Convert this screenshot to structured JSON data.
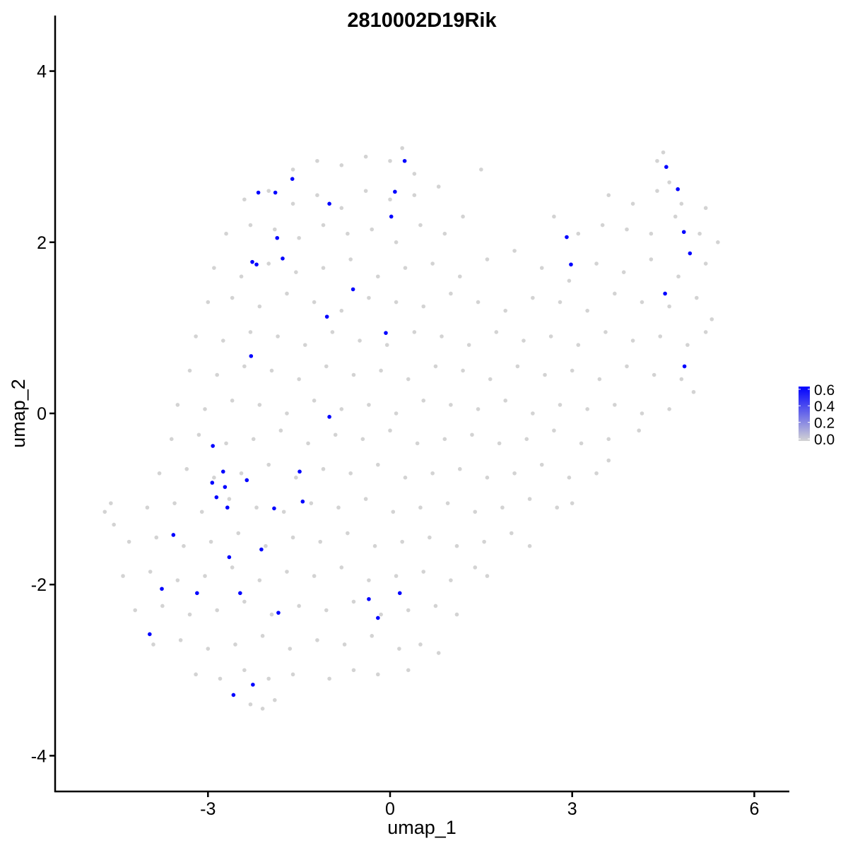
{
  "chart_data": {
    "type": "scatter",
    "title": "2810002D19Rik",
    "xlabel": "umap_1",
    "ylabel": "umap_2",
    "xlim": [
      -5.0,
      6.5
    ],
    "ylim": [
      -4.3,
      4.4
    ],
    "x_ticks": [
      -3,
      0,
      3,
      6
    ],
    "x_tick_labels": [
      "-3",
      "0",
      "3",
      "6"
    ],
    "y_ticks": [
      -4,
      -2,
      0,
      2,
      4
    ],
    "y_tick_labels": [
      "-4",
      "-2",
      "0",
      "2",
      "4"
    ],
    "grid": false,
    "legend": {
      "placement": "right",
      "type": "colorbar",
      "low_color": "#d3d3d3",
      "high_color": "#0000ff",
      "range": [
        0.0,
        0.65
      ],
      "ticks": [
        0.0,
        0.2,
        0.4,
        0.6
      ],
      "tick_labels": [
        "0.0",
        "0.2",
        "0.4",
        "0.6"
      ]
    },
    "colors": {
      "unexpressed": "#d3d3d3",
      "expressed": "#0000ff"
    },
    "expressed_points": [
      [
        0.24,
        2.95
      ],
      [
        -1.61,
        2.74
      ],
      [
        -2.17,
        2.58
      ],
      [
        -1.89,
        2.58
      ],
      [
        0.08,
        2.59
      ],
      [
        -1.0,
        2.45
      ],
      [
        0.02,
        2.3
      ],
      [
        -1.86,
        2.05
      ],
      [
        -2.27,
        1.77
      ],
      [
        -2.2,
        1.74
      ],
      [
        -1.77,
        1.81
      ],
      [
        -0.61,
        1.45
      ],
      [
        -1.04,
        1.13
      ],
      [
        -0.07,
        0.94
      ],
      [
        -2.29,
        0.67
      ],
      [
        -1.0,
        -0.04
      ],
      [
        -2.92,
        -0.38
      ],
      [
        -2.75,
        -0.68
      ],
      [
        -1.49,
        -0.68
      ],
      [
        -2.36,
        -0.78
      ],
      [
        -2.93,
        -0.81
      ],
      [
        -2.72,
        -0.86
      ],
      [
        -2.86,
        -0.98
      ],
      [
        -1.44,
        -1.03
      ],
      [
        -2.68,
        -1.1
      ],
      [
        -1.91,
        -1.11
      ],
      [
        -3.57,
        -1.42
      ],
      [
        -2.12,
        -1.59
      ],
      [
        -2.65,
        -1.68
      ],
      [
        -3.76,
        -2.05
      ],
      [
        -3.18,
        -2.1
      ],
      [
        -2.47,
        -2.1
      ],
      [
        0.16,
        -2.1
      ],
      [
        -0.35,
        -2.17
      ],
      [
        -1.84,
        -2.33
      ],
      [
        -0.2,
        -2.39
      ],
      [
        -3.96,
        -2.58
      ],
      [
        -2.26,
        -3.17
      ],
      [
        -2.58,
        -3.29
      ],
      [
        2.91,
        2.06
      ],
      [
        2.98,
        1.74
      ],
      [
        4.55,
        2.88
      ],
      [
        4.74,
        2.62
      ],
      [
        4.84,
        2.12
      ],
      [
        4.94,
        1.87
      ],
      [
        4.53,
        1.4
      ],
      [
        4.85,
        0.55
      ]
    ],
    "unexpressed_points": [
      [
        -1.6,
        2.85
      ],
      [
        -1.2,
        2.95
      ],
      [
        -0.8,
        2.9
      ],
      [
        -0.4,
        3.0
      ],
      [
        0.0,
        2.95
      ],
      [
        0.4,
        2.8
      ],
      [
        0.2,
        3.1
      ],
      [
        4.4,
        2.95
      ],
      [
        4.6,
        2.7
      ],
      [
        4.5,
        3.05
      ],
      [
        -2.4,
        2.5
      ],
      [
        -2.0,
        2.6
      ],
      [
        -1.6,
        2.45
      ],
      [
        -1.2,
        2.55
      ],
      [
        -0.8,
        2.4
      ],
      [
        -0.4,
        2.6
      ],
      [
        0.0,
        2.5
      ],
      [
        0.4,
        2.55
      ],
      [
        0.8,
        2.65
      ],
      [
        1.5,
        2.85
      ],
      [
        3.6,
        2.55
      ],
      [
        4.0,
        2.45
      ],
      [
        4.4,
        2.6
      ],
      [
        4.8,
        2.45
      ],
      [
        5.2,
        2.4
      ],
      [
        -2.7,
        2.1
      ],
      [
        -2.3,
        2.2
      ],
      [
        -1.9,
        2.15
      ],
      [
        -1.5,
        2.05
      ],
      [
        -1.1,
        2.2
      ],
      [
        -0.7,
        2.1
      ],
      [
        -0.3,
        2.15
      ],
      [
        0.1,
        2.0
      ],
      [
        0.5,
        2.2
      ],
      [
        0.9,
        2.1
      ],
      [
        1.2,
        2.3
      ],
      [
        2.7,
        2.3
      ],
      [
        3.1,
        2.1
      ],
      [
        3.5,
        2.2
      ],
      [
        3.9,
        2.15
      ],
      [
        4.3,
        2.1
      ],
      [
        4.7,
        2.3
      ],
      [
        5.1,
        2.1
      ],
      [
        5.4,
        2.0
      ],
      [
        -2.9,
        1.7
      ],
      [
        -2.45,
        1.6
      ],
      [
        -2.0,
        1.75
      ],
      [
        -1.55,
        1.65
      ],
      [
        -1.1,
        1.7
      ],
      [
        -0.65,
        1.8
      ],
      [
        -0.2,
        1.6
      ],
      [
        0.25,
        1.7
      ],
      [
        0.7,
        1.75
      ],
      [
        1.15,
        1.6
      ],
      [
        1.6,
        1.8
      ],
      [
        2.05,
        1.9
      ],
      [
        2.5,
        1.7
      ],
      [
        2.95,
        1.55
      ],
      [
        3.4,
        1.75
      ],
      [
        3.85,
        1.65
      ],
      [
        4.3,
        1.8
      ],
      [
        4.75,
        1.6
      ],
      [
        5.2,
        1.75
      ],
      [
        -3.0,
        1.3
      ],
      [
        -2.6,
        1.35
      ],
      [
        -2.15,
        1.25
      ],
      [
        -1.7,
        1.4
      ],
      [
        -1.25,
        1.3
      ],
      [
        -0.8,
        1.2
      ],
      [
        -0.35,
        1.35
      ],
      [
        0.1,
        1.3
      ],
      [
        0.55,
        1.25
      ],
      [
        1.0,
        1.4
      ],
      [
        1.45,
        1.3
      ],
      [
        1.9,
        1.2
      ],
      [
        2.35,
        1.35
      ],
      [
        2.8,
        1.3
      ],
      [
        3.25,
        1.2
      ],
      [
        3.7,
        1.4
      ],
      [
        4.15,
        1.3
      ],
      [
        4.6,
        1.25
      ],
      [
        5.05,
        1.35
      ],
      [
        5.3,
        1.1
      ],
      [
        -3.2,
        0.9
      ],
      [
        -2.75,
        0.85
      ],
      [
        -2.3,
        0.95
      ],
      [
        -1.85,
        0.9
      ],
      [
        -1.4,
        0.8
      ],
      [
        -0.95,
        0.95
      ],
      [
        -0.5,
        0.85
      ],
      [
        -0.05,
        0.8
      ],
      [
        0.4,
        0.95
      ],
      [
        0.85,
        0.9
      ],
      [
        1.3,
        0.8
      ],
      [
        1.75,
        0.95
      ],
      [
        2.2,
        0.85
      ],
      [
        2.65,
        0.9
      ],
      [
        3.1,
        0.8
      ],
      [
        3.55,
        0.95
      ],
      [
        4.0,
        0.85
      ],
      [
        4.45,
        0.9
      ],
      [
        4.9,
        0.8
      ],
      [
        5.2,
        0.95
      ],
      [
        -3.3,
        0.5
      ],
      [
        -2.85,
        0.45
      ],
      [
        -2.4,
        0.55
      ],
      [
        -1.95,
        0.5
      ],
      [
        -1.5,
        0.4
      ],
      [
        -1.05,
        0.55
      ],
      [
        -0.6,
        0.45
      ],
      [
        -0.15,
        0.5
      ],
      [
        0.3,
        0.4
      ],
      [
        0.75,
        0.55
      ],
      [
        1.2,
        0.5
      ],
      [
        1.65,
        0.4
      ],
      [
        2.1,
        0.55
      ],
      [
        2.55,
        0.45
      ],
      [
        3.0,
        0.5
      ],
      [
        3.45,
        0.4
      ],
      [
        3.9,
        0.55
      ],
      [
        4.35,
        0.45
      ],
      [
        4.8,
        0.4
      ],
      [
        5.0,
        0.25
      ],
      [
        -3.5,
        0.1
      ],
      [
        -3.05,
        0.05
      ],
      [
        -2.6,
        0.15
      ],
      [
        -2.15,
        0.1
      ],
      [
        -1.7,
        0.0
      ],
      [
        -1.25,
        0.15
      ],
      [
        -0.8,
        0.05
      ],
      [
        -0.35,
        0.1
      ],
      [
        0.1,
        0.0
      ],
      [
        0.55,
        0.15
      ],
      [
        1.0,
        0.1
      ],
      [
        1.45,
        0.05
      ],
      [
        1.9,
        0.15
      ],
      [
        2.35,
        0.0
      ],
      [
        2.8,
        0.1
      ],
      [
        3.25,
        0.05
      ],
      [
        3.7,
        0.1
      ],
      [
        4.15,
        0.0
      ],
      [
        4.6,
        0.05
      ],
      [
        -3.6,
        -0.3
      ],
      [
        -3.15,
        -0.25
      ],
      [
        -2.7,
        -0.35
      ],
      [
        -2.25,
        -0.3
      ],
      [
        -1.8,
        -0.2
      ],
      [
        -1.35,
        -0.35
      ],
      [
        -0.9,
        -0.25
      ],
      [
        -0.45,
        -0.3
      ],
      [
        0.0,
        -0.2
      ],
      [
        0.45,
        -0.35
      ],
      [
        0.9,
        -0.3
      ],
      [
        1.35,
        -0.25
      ],
      [
        1.8,
        -0.35
      ],
      [
        2.25,
        -0.3
      ],
      [
        2.7,
        -0.2
      ],
      [
        3.15,
        -0.35
      ],
      [
        3.6,
        -0.3
      ],
      [
        4.1,
        -0.2
      ],
      [
        -3.8,
        -0.7
      ],
      [
        -3.35,
        -0.65
      ],
      [
        -2.9,
        -0.75
      ],
      [
        -2.45,
        -0.7
      ],
      [
        -2.0,
        -0.6
      ],
      [
        -1.55,
        -0.75
      ],
      [
        -1.1,
        -0.65
      ],
      [
        -0.65,
        -0.7
      ],
      [
        -0.2,
        -0.6
      ],
      [
        0.25,
        -0.75
      ],
      [
        0.7,
        -0.7
      ],
      [
        1.15,
        -0.65
      ],
      [
        1.6,
        -0.75
      ],
      [
        2.05,
        -0.7
      ],
      [
        2.5,
        -0.6
      ],
      [
        2.95,
        -0.75
      ],
      [
        3.4,
        -0.7
      ],
      [
        3.6,
        -0.55
      ],
      [
        -4.7,
        -1.15
      ],
      [
        -4.55,
        -1.3
      ],
      [
        -4.6,
        -1.05
      ],
      [
        -4.0,
        -1.1
      ],
      [
        -3.55,
        -1.05
      ],
      [
        -3.1,
        -1.15
      ],
      [
        -2.65,
        -1.0
      ],
      [
        -2.2,
        -1.1
      ],
      [
        -1.75,
        -1.15
      ],
      [
        -1.3,
        -1.05
      ],
      [
        -0.85,
        -1.1
      ],
      [
        -0.4,
        -1.0
      ],
      [
        0.05,
        -1.15
      ],
      [
        0.5,
        -1.1
      ],
      [
        0.95,
        -1.05
      ],
      [
        1.4,
        -1.15
      ],
      [
        1.85,
        -1.1
      ],
      [
        2.3,
        -1.0
      ],
      [
        2.75,
        -1.1
      ],
      [
        3.0,
        -1.05
      ],
      [
        -4.3,
        -1.5
      ],
      [
        -3.85,
        -1.45
      ],
      [
        -3.4,
        -1.55
      ],
      [
        -2.95,
        -1.5
      ],
      [
        -2.5,
        -1.4
      ],
      [
        -2.05,
        -1.55
      ],
      [
        -1.6,
        -1.45
      ],
      [
        -1.15,
        -1.5
      ],
      [
        -0.7,
        -1.4
      ],
      [
        -0.25,
        -1.55
      ],
      [
        0.2,
        -1.5
      ],
      [
        0.65,
        -1.45
      ],
      [
        1.1,
        -1.55
      ],
      [
        1.55,
        -1.5
      ],
      [
        2.0,
        -1.4
      ],
      [
        2.3,
        -1.55
      ],
      [
        -4.4,
        -1.9
      ],
      [
        -3.95,
        -1.85
      ],
      [
        -3.5,
        -1.95
      ],
      [
        -3.05,
        -1.9
      ],
      [
        -2.6,
        -1.8
      ],
      [
        -2.15,
        -1.95
      ],
      [
        -1.7,
        -1.85
      ],
      [
        -1.25,
        -1.9
      ],
      [
        -0.8,
        -1.8
      ],
      [
        -0.35,
        -1.95
      ],
      [
        0.1,
        -1.9
      ],
      [
        0.55,
        -1.85
      ],
      [
        1.0,
        -1.95
      ],
      [
        1.4,
        -1.8
      ],
      [
        1.6,
        -1.9
      ],
      [
        -4.2,
        -2.3
      ],
      [
        -3.75,
        -2.25
      ],
      [
        -3.3,
        -2.35
      ],
      [
        -2.85,
        -2.3
      ],
      [
        -2.4,
        -2.2
      ],
      [
        -1.95,
        -2.35
      ],
      [
        -1.5,
        -2.25
      ],
      [
        -1.05,
        -2.3
      ],
      [
        -0.6,
        -2.2
      ],
      [
        -0.15,
        -2.35
      ],
      [
        0.3,
        -2.3
      ],
      [
        0.75,
        -2.25
      ],
      [
        1.1,
        -2.35
      ],
      [
        -3.9,
        -2.7
      ],
      [
        -3.45,
        -2.65
      ],
      [
        -3.0,
        -2.75
      ],
      [
        -2.55,
        -2.7
      ],
      [
        -2.1,
        -2.6
      ],
      [
        -1.65,
        -2.75
      ],
      [
        -1.2,
        -2.65
      ],
      [
        -0.75,
        -2.7
      ],
      [
        -0.3,
        -2.6
      ],
      [
        0.15,
        -2.75
      ],
      [
        0.5,
        -2.7
      ],
      [
        0.8,
        -2.8
      ],
      [
        -3.2,
        -3.05
      ],
      [
        -2.8,
        -3.1
      ],
      [
        -2.4,
        -3.0
      ],
      [
        -2.0,
        -3.1
      ],
      [
        -1.6,
        -3.05
      ],
      [
        -1.0,
        -3.1
      ],
      [
        -0.6,
        -3.0
      ],
      [
        -0.2,
        -3.05
      ],
      [
        0.3,
        -3.0
      ],
      [
        -2.3,
        -3.4
      ],
      [
        -2.1,
        -3.45
      ],
      [
        -1.9,
        -3.35
      ]
    ]
  }
}
